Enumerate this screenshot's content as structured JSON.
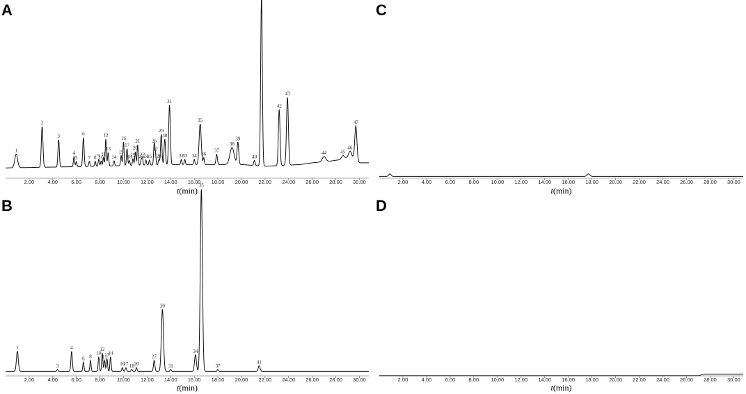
{
  "chart_data": [
    {
      "panel": "A",
      "type": "line",
      "xlabel_italic": "t",
      "xlabel_rest": "(min)",
      "xlim": [
        0.0,
        30.8
      ],
      "ylim": [
        0,
        100
      ],
      "xticks": [
        "2.00",
        "4.00",
        "6.00",
        "8.00",
        "10.00",
        "12.00",
        "14.00",
        "16.00",
        "18.00",
        "20.00",
        "22.00",
        "24.00",
        "26.00",
        "28.00",
        "30.00"
      ],
      "tick_values": [
        2,
        4,
        6,
        8,
        10,
        12,
        14,
        16,
        18,
        20,
        22,
        24,
        26,
        28,
        30
      ],
      "baseline": [
        [
          0,
          4
        ],
        [
          8,
          5
        ],
        [
          14,
          6
        ],
        [
          20,
          6
        ],
        [
          22,
          5
        ],
        [
          25,
          6
        ],
        [
          26,
          7
        ],
        [
          27.5,
          8
        ],
        [
          28.5,
          9
        ],
        [
          29.3,
          11
        ],
        [
          30,
          7
        ],
        [
          30.8,
          7
        ]
      ],
      "peaks": [
        {
          "label": "1",
          "t": 0.9,
          "h": 8,
          "w": 0.12
        },
        {
          "label": "2",
          "t": 3.1,
          "h": 24,
          "w": 0.07
        },
        {
          "label": "3",
          "t": 4.5,
          "h": 16,
          "w": 0.06
        },
        {
          "label": "4",
          "t": 5.8,
          "h": 6,
          "w": 0.05
        },
        {
          "label": "5",
          "t": 6.0,
          "h": 3,
          "w": 0.05
        },
        {
          "label": "6",
          "t": 6.6,
          "h": 17,
          "w": 0.06
        },
        {
          "label": "7",
          "t": 7.1,
          "h": 3,
          "w": 0.05
        },
        {
          "label": "8",
          "t": 7.6,
          "h": 3,
          "w": 0.05
        },
        {
          "label": "9",
          "t": 7.9,
          "h": 4,
          "w": 0.05
        },
        {
          "label": "10",
          "t": 8.1,
          "h": 3,
          "w": 0.05
        },
        {
          "label": "11",
          "t": 8.3,
          "h": 5,
          "w": 0.05
        },
        {
          "label": "12",
          "t": 8.5,
          "h": 16,
          "w": 0.05
        },
        {
          "label": "13",
          "t": 8.7,
          "h": 8,
          "w": 0.05
        },
        {
          "label": "14",
          "t": 9.2,
          "h": 3,
          "w": 0.05
        },
        {
          "label": "15",
          "t": 9.8,
          "h": 6,
          "w": 0.05
        },
        {
          "label": "16",
          "t": 10.0,
          "h": 14,
          "w": 0.05
        },
        {
          "label": "17",
          "t": 10.3,
          "h": 10,
          "w": 0.05
        },
        {
          "label": "18",
          "t": 10.5,
          "h": 3,
          "w": 0.05
        },
        {
          "label": "19",
          "t": 10.8,
          "h": 4,
          "w": 0.05
        },
        {
          "label": "20",
          "t": 11.0,
          "h": 8,
          "w": 0.05
        },
        {
          "label": "21",
          "t": 11.2,
          "h": 12,
          "w": 0.05
        },
        {
          "label": "22",
          "t": 11.6,
          "h": 4,
          "w": 0.05
        },
        {
          "label": "23",
          "t": 11.5,
          "h": 3,
          "w": 0.05
        },
        {
          "label": "24",
          "t": 11.9,
          "h": 3,
          "w": 0.05
        },
        {
          "label": "25",
          "t": 12.2,
          "h": 3,
          "w": 0.05
        },
        {
          "label": "26",
          "t": 12.6,
          "h": 12,
          "w": 0.05
        },
        {
          "label": "27",
          "t": 12.7,
          "h": 7,
          "w": 0.05
        },
        {
          "label": "28",
          "t": 13.0,
          "h": 3,
          "w": 0.05
        },
        {
          "label": "29",
          "t": 13.2,
          "h": 18,
          "w": 0.06
        },
        {
          "label": "30",
          "t": 13.5,
          "h": 15,
          "w": 0.06
        },
        {
          "label": "31",
          "t": 13.9,
          "h": 35,
          "w": 0.07
        },
        {
          "label": "32",
          "t": 14.9,
          "h": 3,
          "w": 0.05
        },
        {
          "label": "33",
          "t": 15.2,
          "h": 3,
          "w": 0.05
        },
        {
          "label": "34",
          "t": 16.0,
          "h": 3,
          "w": 0.05
        },
        {
          "label": "35",
          "t": 16.5,
          "h": 24,
          "w": 0.09
        },
        {
          "label": "36",
          "t": 16.8,
          "h": 4,
          "w": 0.05
        },
        {
          "label": "37",
          "t": 17.9,
          "h": 6,
          "w": 0.06
        },
        {
          "label": "38",
          "t": 19.2,
          "h": 10,
          "w": 0.18
        },
        {
          "label": "39",
          "t": 19.7,
          "h": 13,
          "w": 0.07
        },
        {
          "label": "40",
          "t": 21.1,
          "h": 3,
          "w": 0.06
        },
        {
          "label": "41",
          "t": 21.7,
          "h": 100,
          "w": 0.07
        },
        {
          "label": "42",
          "t": 23.2,
          "h": 33,
          "w": 0.07
        },
        {
          "label": "43",
          "t": 23.9,
          "h": 40,
          "w": 0.08
        },
        {
          "label": "44",
          "t": 27.0,
          "h": 3,
          "w": 0.15
        },
        {
          "label": "45",
          "t": 28.6,
          "h": 2,
          "w": 0.12
        },
        {
          "label": "46",
          "t": 29.2,
          "h": 3,
          "w": 0.12
        },
        {
          "label": "47",
          "t": 29.7,
          "h": 20,
          "w": 0.09
        }
      ]
    },
    {
      "panel": "B",
      "type": "line",
      "xlabel_italic": "t",
      "xlabel_rest": "(min)",
      "xlim": [
        0.0,
        30.8
      ],
      "ylim": [
        0,
        100
      ],
      "xticks": [
        "2.00",
        "4.00",
        "6.00",
        "8.00",
        "10.00",
        "12.00",
        "14.00",
        "16.00",
        "18.00",
        "20.00",
        "22.00",
        "24.00",
        "26.00",
        "28.00",
        "30.00"
      ],
      "tick_values": [
        2,
        4,
        6,
        8,
        10,
        12,
        14,
        16,
        18,
        20,
        22,
        24,
        26,
        28,
        30
      ],
      "baseline": [
        [
          0,
          1
        ],
        [
          30.8,
          1
        ]
      ],
      "peaks": [
        {
          "label": "1",
          "t": 1.0,
          "h": 11,
          "w": 0.08
        },
        {
          "label": "3",
          "t": 4.4,
          "h": 1,
          "w": 0.05
        },
        {
          "label": "4",
          "t": 5.6,
          "h": 11,
          "w": 0.06
        },
        {
          "label": "6",
          "t": 6.6,
          "h": 5,
          "w": 0.05
        },
        {
          "label": "8",
          "t": 7.2,
          "h": 6,
          "w": 0.05
        },
        {
          "label": "10",
          "t": 7.9,
          "h": 8,
          "w": 0.05
        },
        {
          "label": "11",
          "t": 8.4,
          "h": 6,
          "w": 0.05
        },
        {
          "label": "12",
          "t": 8.2,
          "h": 10,
          "w": 0.05
        },
        {
          "label": "13",
          "t": 8.6,
          "h": 7,
          "w": 0.05
        },
        {
          "label": "14",
          "t": 8.9,
          "h": 8,
          "w": 0.05
        },
        {
          "label": "16",
          "t": 9.9,
          "h": 2,
          "w": 0.05
        },
        {
          "label": "17",
          "t": 10.2,
          "h": 2,
          "w": 0.05
        },
        {
          "label": "18",
          "t": 10.7,
          "h": 1,
          "w": 0.05
        },
        {
          "label": "20",
          "t": 11.1,
          "h": 2,
          "w": 0.05
        },
        {
          "label": "27",
          "t": 12.6,
          "h": 6,
          "w": 0.06
        },
        {
          "label": "30",
          "t": 13.3,
          "h": 34,
          "w": 0.09
        },
        {
          "label": "31",
          "t": 14.0,
          "h": 1,
          "w": 0.05
        },
        {
          "label": "34",
          "t": 16.1,
          "h": 9,
          "w": 0.08
        },
        {
          "label": "35",
          "t": 16.6,
          "h": 100,
          "w": 0.09
        },
        {
          "label": "37",
          "t": 18.0,
          "h": 1,
          "w": 0.05
        },
        {
          "label": "41",
          "t": 21.5,
          "h": 3,
          "w": 0.08
        }
      ]
    },
    {
      "panel": "C",
      "type": "line",
      "xlabel_italic": "t",
      "xlabel_rest": "(min)",
      "xlim": [
        0.0,
        30.8
      ],
      "ylim": [
        0,
        100
      ],
      "xticks": [
        "2.00",
        "4.00",
        "6.00",
        "8.00",
        "10.00",
        "12.00",
        "14.00",
        "16.00",
        "18.00",
        "20.00",
        "22.00",
        "24.00",
        "26.00",
        "28.00",
        "30.00"
      ],
      "tick_values": [
        2,
        4,
        6,
        8,
        10,
        12,
        14,
        16,
        18,
        20,
        22,
        24,
        26,
        28,
        30
      ],
      "baseline": [
        [
          0,
          1.5
        ],
        [
          30.8,
          1.5
        ]
      ],
      "peaks": [
        {
          "label": "",
          "t": 0.9,
          "h": 1.5,
          "w": 0.1
        },
        {
          "label": "",
          "t": 17.7,
          "h": 1.5,
          "w": 0.12
        }
      ]
    },
    {
      "panel": "D",
      "type": "line",
      "xlabel_italic": "t",
      "xlabel_rest": "(min)",
      "xlim": [
        0.0,
        30.8
      ],
      "ylim": [
        0,
        100
      ],
      "xticks": [
        "2.00",
        "4.00",
        "6.00",
        "8.00",
        "10.00",
        "12.00",
        "14.00",
        "16.00",
        "18.00",
        "20.00",
        "22.00",
        "24.00",
        "26.00",
        "28.00",
        "30.00"
      ],
      "tick_values": [
        2,
        4,
        6,
        8,
        10,
        12,
        14,
        16,
        18,
        20,
        22,
        24,
        26,
        28,
        30
      ],
      "baseline": [
        [
          0,
          0.5
        ],
        [
          27,
          0.5
        ],
        [
          27.5,
          1.5
        ],
        [
          30.8,
          1.5
        ]
      ],
      "peaks": []
    }
  ]
}
